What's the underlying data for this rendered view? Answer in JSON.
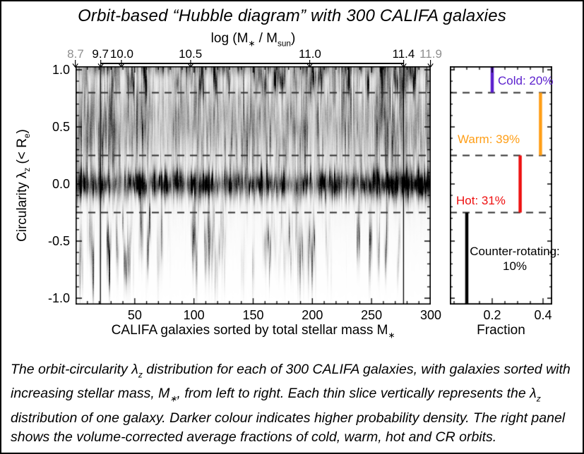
{
  "figure": {
    "title": "Orbit-based “Hubble diagram” with 300 CALIFA galaxies",
    "caption_segments": [
      {
        "t": "The orbit-circularity λ"
      },
      {
        "t": "z",
        "sub": true
      },
      {
        "t": " distribution for each of 300 CALIFA galaxies, with galaxies sorted with increasing stellar mass, M"
      },
      {
        "t": "∗",
        "sub": true
      },
      {
        "t": ", from left to right. Each thin slice vertically represents the λ"
      },
      {
        "t": "z",
        "sub": true
      },
      {
        "t": " distribution of one galaxy. Darker colour indicates higher probability density. The right panel shows the volume-corrected average fractions of cold, warm, hot and CR orbits."
      }
    ]
  },
  "colors": {
    "cold": "#5a1ecd",
    "warm": "#ff9e16",
    "hot": "#ee1010",
    "counter_rotating": "#000000",
    "muted_tick_label": "#8f8f8f",
    "dashed_line": "#303030",
    "axis": "#000000"
  },
  "main_panel": {
    "top_axis_label_segments": [
      {
        "t": "log (M"
      },
      {
        "t": "∗",
        "sub": true
      },
      {
        "t": " / M"
      },
      {
        "t": "sun",
        "sub": true
      },
      {
        "t": ")"
      }
    ],
    "x_axis_label_segments": [
      {
        "t": "CALIFA galaxies sorted by total stellar mass M"
      },
      {
        "t": "∗",
        "sub": true
      }
    ],
    "y_axis_label_segments": [
      {
        "t": "Circularity λ"
      },
      {
        "t": "z",
        "sub": true
      },
      {
        "t": " (< R"
      },
      {
        "t": "e",
        "sub": true
      },
      {
        "t": ")"
      }
    ]
  },
  "right_panel": {
    "x_axis_label": "Fraction"
  },
  "chart_data": [
    {
      "type": "heatmap",
      "title": "Orbit-based “Hubble diagram” with 300 CALIFA galaxies",
      "xlabel": "CALIFA galaxies sorted by total stellar mass M∗",
      "ylabel": "Circularity λz (< Re)",
      "x_range": [
        0,
        300
      ],
      "x_ticks": [
        "50",
        "100",
        "150",
        "200",
        "250",
        "300"
      ],
      "x_tick_values": [
        50,
        100,
        150,
        200,
        250,
        300
      ],
      "x_minor_step": 10,
      "y_range": [
        -1.05,
        1.03
      ],
      "y_ticks": [
        "1.0",
        "0.5",
        "0.0",
        "-0.5",
        "-1.0"
      ],
      "y_tick_values": [
        1.0,
        0.5,
        0.0,
        -0.5,
        -1.0
      ],
      "y_minor_step": 0.1,
      "dashed_lines_lambda": [
        0.8,
        0.25,
        -0.25
      ],
      "top_axis": {
        "label": "log (M∗ / Msun)",
        "ticks": [
          {
            "label": "8.7",
            "galaxy": 0,
            "muted": true,
            "marker_line": false
          },
          {
            "label": "9.7",
            "galaxy": 21,
            "muted": false,
            "marker_line": true
          },
          {
            "label": "10.0",
            "galaxy": 39,
            "muted": false,
            "marker_line": false
          },
          {
            "label": "10.5",
            "galaxy": 97,
            "muted": false,
            "marker_line": false
          },
          {
            "label": "11.0",
            "galaxy": 198,
            "muted": false,
            "marker_line": false
          },
          {
            "label": "11.4",
            "galaxy": 277,
            "muted": false,
            "marker_line": true
          },
          {
            "label": "11.9",
            "galaxy": 300,
            "muted": true,
            "marker_line": false
          }
        ],
        "bracket_between_galaxies": [
          21,
          277
        ]
      },
      "colorscale": "grayscale: white = low probability density, black = high probability density",
      "description": "Each thin vertical slice is the orbit-circularity probability distribution of one galaxy; a dark band at λz ≈ 0 strengthens toward the high-mass (right) end."
    },
    {
      "type": "bar",
      "xlabel": "Fraction",
      "x_range": [
        0.033,
        0.436
      ],
      "x_ticks": [
        "0.2",
        "0.4"
      ],
      "x_tick_values": [
        0.2,
        0.4
      ],
      "x_minor_step": 0.05,
      "y_range": [
        -1.05,
        1.03
      ],
      "dashed_lines_lambda": [
        0.8,
        0.25,
        -0.25
      ],
      "series": [
        {
          "name": "cold",
          "label": "Cold: 20%",
          "fraction": 0.2,
          "lambda_range": [
            0.8,
            1.03
          ],
          "color_key": "cold",
          "label_side": "right"
        },
        {
          "name": "warm",
          "label": "Warm: 39%",
          "fraction": 0.39,
          "lambda_range": [
            0.25,
            0.8
          ],
          "color_key": "warm",
          "label_side": "left"
        },
        {
          "name": "hot",
          "label": "Hot: 31%",
          "fraction": 0.31,
          "lambda_range": [
            -0.25,
            0.25
          ],
          "color_key": "hot",
          "label_side": "left"
        },
        {
          "name": "counter_rotating",
          "label": "Counter-rotating: 10%",
          "fraction": 0.1,
          "lambda_range": [
            -1.05,
            -0.25
          ],
          "color_key": "counter_rotating",
          "label_side": "right"
        }
      ]
    }
  ]
}
